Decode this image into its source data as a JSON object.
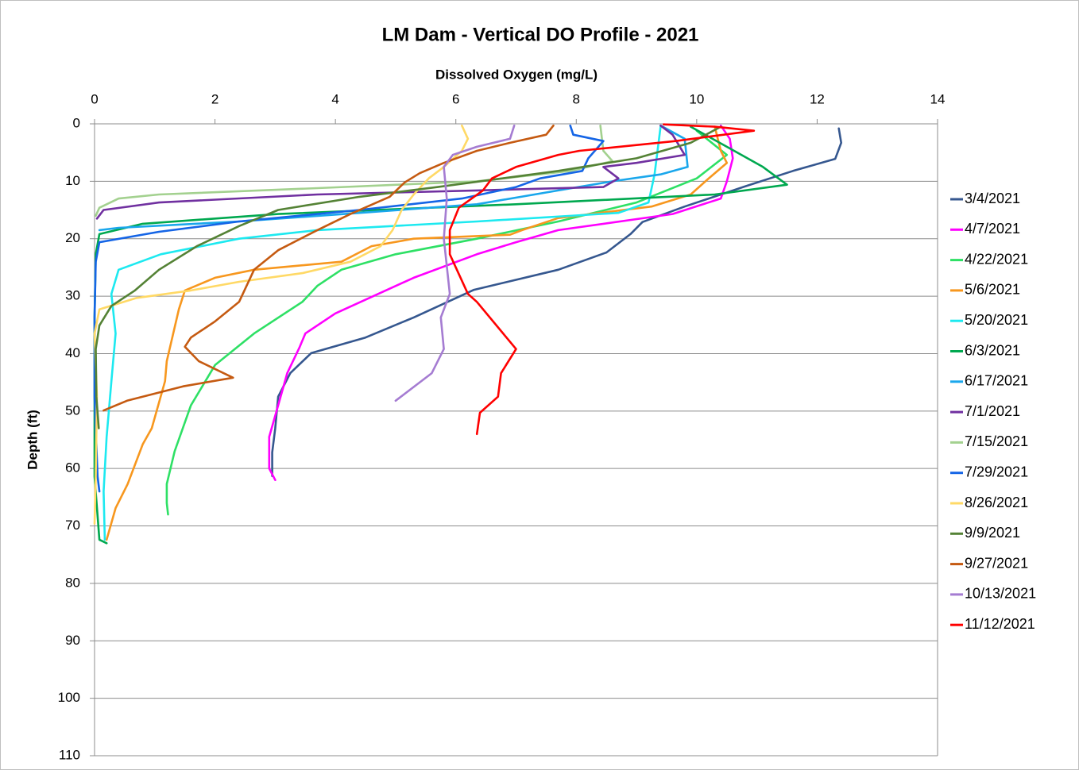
{
  "chart_data": {
    "type": "line",
    "title": "LM Dam - Vertical DO Profile - 2021",
    "x_label": "Dissolved Oxygen (mg/L)",
    "y_label": "Depth (ft)",
    "xlim": [
      0,
      14
    ],
    "xticks": [
      0,
      2,
      4,
      6,
      8,
      10,
      12,
      14
    ],
    "ylim": [
      0,
      110
    ],
    "yticks": [
      0,
      10,
      20,
      30,
      40,
      50,
      60,
      70,
      80,
      90,
      100,
      110
    ],
    "y_inverted": true,
    "x_axis_position": "top",
    "grid": true,
    "legend": "right",
    "series": [
      {
        "name": "3/4/2021",
        "color": "#35578f",
        "x": [
          12.36,
          12.4,
          12.3,
          11.6,
          10.8,
          9.8,
          9.1,
          8.9,
          8.5,
          7.7,
          6.3,
          5.3,
          4.5,
          3.6,
          3.25,
          3.05,
          3.0,
          2.95,
          2.95
        ],
        "values": [
          0.8,
          3.3,
          6.1,
          8.2,
          10.9,
          14.4,
          17.1,
          19.2,
          22.4,
          25.4,
          28.9,
          33.7,
          37.2,
          39.9,
          43.4,
          47.5,
          53,
          57.2,
          61.3
        ]
      },
      {
        "name": "4/7/2021",
        "color": "#ff00ff",
        "x": [
          10.4,
          10.55,
          10.6,
          10.5,
          10.4,
          9.6,
          7.7,
          7.0,
          6.35,
          5.3,
          4.0,
          3.5,
          3.4,
          3.2,
          3.05,
          2.9,
          2.9,
          3.0
        ],
        "values": [
          0.3,
          2.6,
          6,
          10,
          13,
          15.7,
          18.5,
          20.6,
          22.7,
          26.8,
          33,
          36.5,
          39,
          43.4,
          49,
          54.5,
          60,
          62
        ]
      },
      {
        "name": "4/22/2021",
        "color": "#2ee065",
        "x": [
          10.0,
          10.5,
          10.0,
          9.0,
          7.7,
          6.35,
          5.0,
          4.1,
          3.7,
          3.45,
          2.65,
          2.0,
          1.6,
          1.33,
          1.2,
          1.2,
          1.22
        ],
        "values": [
          1.2,
          5.4,
          9.5,
          13.7,
          17,
          20,
          22.7,
          25.4,
          28.2,
          31,
          36.5,
          42,
          49,
          57,
          62.7,
          66,
          68
        ]
      },
      {
        "name": "5/6/2021",
        "color": "#f7971e",
        "x": [
          10.3,
          10.4,
          10.5,
          10.2,
          9.9,
          9.25,
          7.7,
          7.1,
          6.9,
          5.3,
          4.6,
          4.1,
          2.65,
          2.0,
          1.5,
          1.4,
          1.2,
          1.17,
          0.95,
          0.8,
          0.55,
          0.35,
          0.2
        ],
        "values": [
          0.5,
          4.7,
          6.8,
          9.5,
          12.3,
          14.4,
          16.4,
          18.5,
          19.3,
          20,
          21.3,
          24,
          25.4,
          26.8,
          29,
          32.3,
          41.3,
          44.8,
          53,
          55.8,
          62.7,
          66.9,
          72.4
        ]
      },
      {
        "name": "5/20/2021",
        "color": "#1de9f0",
        "x": [
          9.4,
          9.3,
          9.2,
          8.7,
          6.35,
          3.7,
          2.4,
          1.1,
          0.4,
          0.28,
          0.35,
          0.28,
          0.2,
          0.15,
          0.17
        ],
        "values": [
          0.5,
          8.8,
          13.7,
          15.5,
          17,
          18.5,
          20,
          22.7,
          25.4,
          29.6,
          36.5,
          44.8,
          54.5,
          64,
          72.4
        ]
      },
      {
        "name": "6/3/2021",
        "color": "#00a84f",
        "x": [
          9.9,
          10.5,
          11.1,
          11.5,
          10.3,
          7.0,
          3.05,
          0.8,
          0.08,
          0.02,
          0,
          0,
          0,
          0.08,
          0.2
        ],
        "values": [
          0.5,
          4,
          7.5,
          10.6,
          12.3,
          14,
          15.7,
          17.4,
          19.2,
          22.7,
          33.7,
          47.5,
          61.4,
          72.4,
          73
        ]
      },
      {
        "name": "6/17/2021",
        "color": "#1aa7ec",
        "x": [
          9.4,
          9.8,
          9.85,
          9.4,
          8.6,
          7.7,
          6.35,
          4.4,
          2.4,
          0.4,
          0.08
        ],
        "values": [
          0.3,
          2.6,
          7.5,
          8.8,
          10,
          11.6,
          14,
          15.5,
          17,
          18.1,
          18.5
        ]
      },
      {
        "name": "7/1/2021",
        "color": "#7030a0",
        "x": [
          9.4,
          9.6,
          9.8,
          9.0,
          8.45,
          8.7,
          8.45,
          6.35,
          3.7,
          1.07,
          0.15,
          0.04
        ],
        "values": [
          0.3,
          1.9,
          5.4,
          6.8,
          7.5,
          9.5,
          11,
          11.6,
          12.3,
          13.7,
          15,
          16.5
        ]
      },
      {
        "name": "7/15/2021",
        "color": "#a3d18f",
        "x": [
          8.4,
          8.45,
          8.6,
          7.9,
          6.35,
          3.7,
          1.07,
          0.4,
          0.08,
          0.02
        ],
        "values": [
          0.3,
          4.7,
          6.5,
          8.2,
          10,
          11.2,
          12.3,
          13,
          14.6,
          16
        ]
      },
      {
        "name": "7/29/2021",
        "color": "#1565e6",
        "x": [
          7.9,
          7.95,
          8.45,
          8.2,
          8.1,
          7.4,
          7.0,
          6.1,
          4.4,
          2.4,
          1.07,
          0.08,
          0.02,
          0,
          0,
          0.05,
          0.08
        ],
        "values": [
          0.3,
          1.9,
          3,
          6,
          8.2,
          9.5,
          11,
          13,
          15,
          17,
          18.8,
          20.6,
          24,
          33.7,
          47.5,
          61.4,
          64
        ]
      },
      {
        "name": "8/26/2021",
        "color": "#ffd966",
        "x": [
          6.1,
          6.2,
          6.1,
          5.8,
          5.55,
          5.3,
          5.1,
          4.95,
          4.75,
          4.25,
          3.45,
          2.4,
          1.6,
          0.7,
          0.08,
          0,
          0.04,
          0.02,
          0
        ],
        "values": [
          0.3,
          2.6,
          4.7,
          7.5,
          9.5,
          12.3,
          15,
          18.5,
          21.3,
          24,
          26,
          27.5,
          29,
          30.3,
          32.3,
          36.5,
          47.5,
          61.4,
          69.6
        ]
      },
      {
        "name": "9/9/2021",
        "color": "#548235",
        "x": [
          10.4,
          9.9,
          9.0,
          7.7,
          5.7,
          4.4,
          3.05,
          2.4,
          1.7,
          1.07,
          0.67,
          0.28,
          0.08,
          0.02,
          0.03,
          0.07
        ],
        "values": [
          0.5,
          3.3,
          6,
          8.2,
          11,
          12.7,
          15,
          17.8,
          21.3,
          25.4,
          29,
          31.7,
          35.1,
          39.2,
          47.5,
          53
        ]
      },
      {
        "name": "9/27/2021",
        "color": "#c55a11",
        "x": [
          7.62,
          7.5,
          6.9,
          6.35,
          5.8,
          5.4,
          5.15,
          4.9,
          4.25,
          3.7,
          3.05,
          2.65,
          2.4,
          2.0,
          1.6,
          1.5,
          1.73,
          2.3,
          1.47,
          0.54,
          0.15
        ],
        "values": [
          0.3,
          1.9,
          3.3,
          4.7,
          6.8,
          8.6,
          10.2,
          12.7,
          15.7,
          18.5,
          22,
          25.4,
          31,
          34.4,
          37.2,
          38.8,
          41.3,
          44.2,
          45.7,
          48.2,
          49.9
        ]
      },
      {
        "name": "10/13/2021",
        "color": "#a57cd2",
        "x": [
          6.97,
          6.9,
          6.35,
          5.95,
          5.8,
          5.85,
          5.8,
          5.9,
          5.75,
          5.8,
          5.6,
          5.0
        ],
        "values": [
          0.3,
          2.6,
          4,
          5.4,
          7.5,
          13,
          20,
          29.6,
          33.7,
          39.2,
          43.4,
          48.2
        ]
      },
      {
        "name": "11/12/2021",
        "color": "#ff0000",
        "x": [
          9.45,
          10.3,
          10.95,
          9.65,
          8.05,
          7.7,
          7.0,
          6.6,
          6.45,
          6.05,
          5.9,
          5.9,
          6.2,
          6.35,
          7.0,
          6.75,
          6.7,
          6.4,
          6.35
        ],
        "values": [
          0.1,
          0.5,
          1.2,
          3,
          4.7,
          5.4,
          7.5,
          9.5,
          11.6,
          14.6,
          18.5,
          22.7,
          29.6,
          31,
          39.2,
          43.4,
          47.5,
          50.3,
          54
        ]
      }
    ]
  }
}
